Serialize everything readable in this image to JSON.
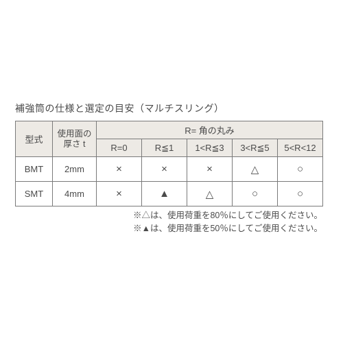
{
  "colors": {
    "header_bg": "#edeae5",
    "border": "#7a7a7a",
    "text": "#4a4a4a",
    "page_bg": "#ffffff"
  },
  "title": "補強筒の仕様と選定の目安（マルチスリング）",
  "table": {
    "header": {
      "model": "型式",
      "thickness_line1": "使用面の",
      "thickness_line2": "厚さ t",
      "r_group": "R= 角の丸み",
      "r_cols": [
        "R=0",
        "R≦1",
        "1<R≦3",
        "3<R≦5",
        "5<R<12"
      ]
    },
    "rows": [
      {
        "model": "BMT",
        "thickness": "2mm",
        "cells": [
          "×",
          "×",
          "×",
          "△",
          "○"
        ]
      },
      {
        "model": "SMT",
        "thickness": "4mm",
        "cells": [
          "×",
          "▲",
          "△",
          "○",
          "○"
        ]
      }
    ]
  },
  "notes": {
    "line1": "※△は、使用荷重を80％にしてご使用ください。",
    "line2": "※▲は、使用荷重を50％にしてご使用ください。"
  }
}
